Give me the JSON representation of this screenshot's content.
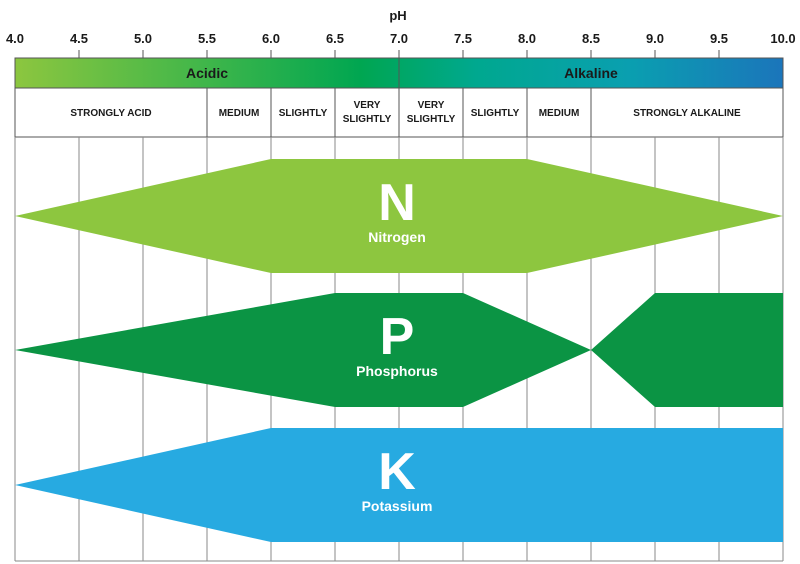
{
  "chart_data": {
    "type": "area",
    "xlabel": "pH",
    "xlim": [
      4.0,
      10.0
    ],
    "ticks": [
      "4.0",
      "4.5",
      "5.0",
      "5.5",
      "6.0",
      "6.5",
      "7.0",
      "7.5",
      "8.0",
      "8.5",
      "9.0",
      "9.5",
      "10.0"
    ],
    "zones": [
      {
        "label": "Acidic",
        "from": 4.0,
        "to": 7.0
      },
      {
        "label": "Alkaline",
        "from": 7.0,
        "to": 10.0
      }
    ],
    "categories": [
      {
        "lines": [
          "STRONGLY ACID"
        ],
        "from": 4.0,
        "to": 5.5
      },
      {
        "lines": [
          "MEDIUM"
        ],
        "from": 5.5,
        "to": 6.0
      },
      {
        "lines": [
          "SLIGHTLY"
        ],
        "from": 6.0,
        "to": 6.5
      },
      {
        "lines": [
          "VERY",
          "SLIGHTLY"
        ],
        "from": 6.5,
        "to": 7.0
      },
      {
        "lines": [
          "VERY",
          "SLIGHTLY"
        ],
        "from": 7.0,
        "to": 7.5
      },
      {
        "lines": [
          "SLIGHTLY"
        ],
        "from": 7.5,
        "to": 8.0
      },
      {
        "lines": [
          "MEDIUM"
        ],
        "from": 8.0,
        "to": 8.5
      },
      {
        "lines": [
          "STRONGLY ALKALINE"
        ],
        "from": 8.5,
        "to": 10.0
      }
    ],
    "series": [
      {
        "symbol": "N",
        "name": "Nitrogen",
        "color": "#8dc63f",
        "x": [
          4.0,
          6.0,
          8.0,
          10.0
        ],
        "availability": [
          0,
          1,
          1,
          0
        ]
      },
      {
        "symbol": "P",
        "name": "Phosphorus",
        "color": "#0b9444",
        "x": [
          4.0,
          6.5,
          7.5,
          8.5,
          9.0,
          10.0
        ],
        "availability": [
          0,
          1,
          1,
          0,
          1,
          1
        ]
      },
      {
        "symbol": "K",
        "name": "Potassium",
        "color": "#27aae1",
        "x": [
          4.0,
          6.0,
          10.0
        ],
        "availability": [
          0,
          1,
          1
        ]
      }
    ],
    "grid": true
  }
}
